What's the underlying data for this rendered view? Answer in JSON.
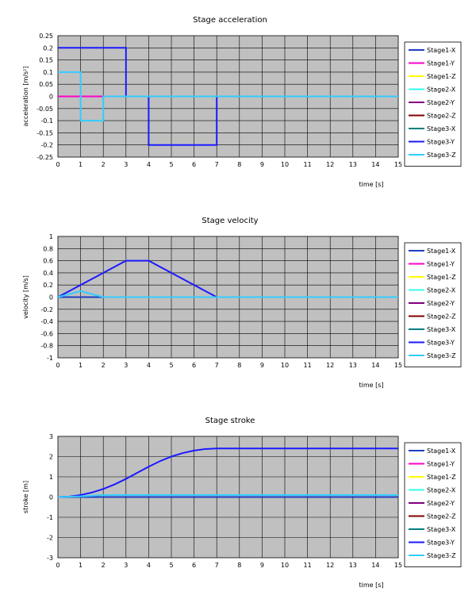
{
  "chart_data": [
    {
      "type": "line",
      "title": "Stage acceleration",
      "xlabel": "time [s]",
      "ylabel": "acceleration [m/s²]",
      "xlim": [
        0,
        15
      ],
      "ylim": [
        -0.25,
        0.25
      ],
      "xticks": [
        0,
        1,
        2,
        3,
        4,
        5,
        6,
        7,
        8,
        9,
        10,
        11,
        12,
        13,
        14,
        15
      ],
      "yticks": [
        0.25,
        0.2,
        0.15,
        0.1,
        0.05,
        0,
        -0.05,
        -0.1,
        -0.15,
        -0.2,
        -0.25
      ],
      "ytick_labels": [
        "0.25",
        "0.2",
        "0.15",
        "0.1",
        "0.05",
        "0",
        "-0.05",
        "-0.1",
        "-0.15",
        "-0.2",
        "-0.25"
      ],
      "grid": true,
      "legend_position": "right",
      "series": [
        {
          "name": "Stage1-X",
          "color": "#1f3fbf",
          "points": [
            [
              0,
              0
            ],
            [
              15,
              0
            ]
          ]
        },
        {
          "name": "Stage1-Y",
          "color": "#ff00cc",
          "points": [
            [
              0,
              0
            ],
            [
              2,
              0
            ]
          ]
        },
        {
          "name": "Stage1-Z",
          "color": "#ffff00",
          "points": []
        },
        {
          "name": "Stage2-X",
          "color": "#33ffee",
          "points": []
        },
        {
          "name": "Stage2-Y",
          "color": "#800080",
          "points": []
        },
        {
          "name": "Stage2-Z",
          "color": "#800000",
          "points": []
        },
        {
          "name": "Stage3-X",
          "color": "#008080",
          "points": []
        },
        {
          "name": "Stage3-Y",
          "color": "#1a1aff",
          "points": [
            [
              0,
              0.2
            ],
            [
              3,
              0.2
            ],
            [
              3,
              0
            ],
            [
              4,
              0
            ],
            [
              4,
              -0.2
            ],
            [
              7,
              -0.2
            ],
            [
              7,
              0
            ],
            [
              15,
              0
            ]
          ]
        },
        {
          "name": "Stage3-Z",
          "color": "#33ccff",
          "points": [
            [
              0,
              0.1
            ],
            [
              1,
              0.1
            ],
            [
              1,
              -0.1
            ],
            [
              2,
              -0.1
            ],
            [
              2,
              0
            ],
            [
              15,
              0
            ]
          ]
        }
      ]
    },
    {
      "type": "line",
      "title": "Stage velocity",
      "xlabel": "time [s]",
      "ylabel": "velocity [m/s]",
      "xlim": [
        0,
        15
      ],
      "ylim": [
        -1,
        1
      ],
      "xticks": [
        0,
        1,
        2,
        3,
        4,
        5,
        6,
        7,
        8,
        9,
        10,
        11,
        12,
        13,
        14,
        15
      ],
      "yticks": [
        1,
        0.8,
        0.6,
        0.4,
        0.2,
        0,
        -0.2,
        -0.4,
        -0.6,
        -0.8,
        -1
      ],
      "ytick_labels": [
        "1",
        "0.8",
        "0.6",
        "0.4",
        "0.2",
        "0",
        "-0.2",
        "-0.4",
        "-0.6",
        "-0.8",
        "-1"
      ],
      "grid": true,
      "legend_position": "right",
      "series": [
        {
          "name": "Stage1-X",
          "color": "#1f3fbf",
          "points": [
            [
              0,
              0
            ],
            [
              15,
              0
            ]
          ]
        },
        {
          "name": "Stage1-Y",
          "color": "#ff00cc",
          "points": []
        },
        {
          "name": "Stage1-Z",
          "color": "#ffff00",
          "points": []
        },
        {
          "name": "Stage2-X",
          "color": "#33ffee",
          "points": []
        },
        {
          "name": "Stage2-Y",
          "color": "#800080",
          "points": []
        },
        {
          "name": "Stage2-Z",
          "color": "#800000",
          "points": []
        },
        {
          "name": "Stage3-X",
          "color": "#008080",
          "points": []
        },
        {
          "name": "Stage3-Y",
          "color": "#1a1aff",
          "points": [
            [
              0,
              0
            ],
            [
              3,
              0.6
            ],
            [
              4,
              0.6
            ],
            [
              7,
              0
            ],
            [
              15,
              0
            ]
          ]
        },
        {
          "name": "Stage3-Z",
          "color": "#33ccff",
          "points": [
            [
              0,
              0
            ],
            [
              1,
              0.1
            ],
            [
              2,
              0
            ],
            [
              15,
              0
            ]
          ]
        }
      ]
    },
    {
      "type": "line",
      "title": "Stage stroke",
      "xlabel": "time [s]",
      "ylabel": "stroke [m]",
      "xlim": [
        0,
        15
      ],
      "ylim": [
        -3,
        3
      ],
      "xticks": [
        0,
        1,
        2,
        3,
        4,
        5,
        6,
        7,
        8,
        9,
        10,
        11,
        12,
        13,
        14,
        15
      ],
      "yticks": [
        3,
        2,
        1,
        0,
        -1,
        -2,
        -3
      ],
      "ytick_labels": [
        "3",
        "2",
        "1",
        "0",
        "-1",
        "-2",
        "-3"
      ],
      "grid": true,
      "legend_position": "right",
      "series": [
        {
          "name": "Stage1-X",
          "color": "#1f3fbf",
          "points": [
            [
              0,
              0
            ],
            [
              15,
              0
            ]
          ]
        },
        {
          "name": "Stage1-Y",
          "color": "#ff00cc",
          "points": []
        },
        {
          "name": "Stage1-Z",
          "color": "#ffff00",
          "points": []
        },
        {
          "name": "Stage2-X",
          "color": "#33ffee",
          "points": []
        },
        {
          "name": "Stage2-Y",
          "color": "#800080",
          "points": []
        },
        {
          "name": "Stage2-Z",
          "color": "#800000",
          "points": []
        },
        {
          "name": "Stage3-X",
          "color": "#008080",
          "points": []
        },
        {
          "name": "Stage3-Y",
          "color": "#1a1aff",
          "points": [
            [
              0,
              0
            ],
            [
              0.5,
              0.025
            ],
            [
              1,
              0.1
            ],
            [
              1.5,
              0.225
            ],
            [
              2,
              0.4
            ],
            [
              2.5,
              0.625
            ],
            [
              3,
              0.9
            ],
            [
              3.5,
              1.2
            ],
            [
              4,
              1.5
            ],
            [
              4.5,
              1.775
            ],
            [
              5,
              2.0
            ],
            [
              5.5,
              2.175
            ],
            [
              6,
              2.3
            ],
            [
              6.5,
              2.375
            ],
            [
              7,
              2.4
            ],
            [
              15,
              2.4
            ]
          ]
        },
        {
          "name": "Stage3-Z",
          "color": "#33ccff",
          "points": [
            [
              0,
              0
            ],
            [
              1,
              0.033
            ],
            [
              2,
              0.1
            ],
            [
              15,
              0.1
            ]
          ]
        }
      ]
    }
  ]
}
